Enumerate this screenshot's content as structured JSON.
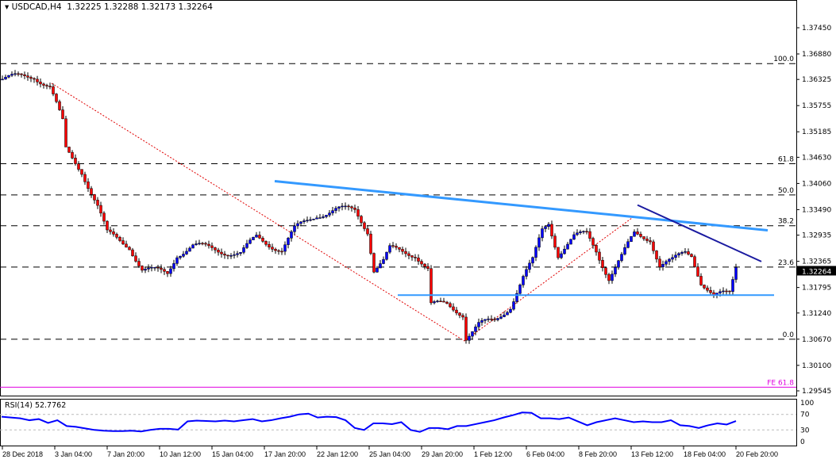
{
  "header": {
    "symbol": "USDCAD,H4",
    "open": "1.32225",
    "high": "1.32288",
    "low": "1.32173",
    "close": "1.32264"
  },
  "chart_data": {
    "type": "candlestick",
    "title": "USDCAD,H4",
    "ylim": [
      1.29545,
      1.3745
    ],
    "price_ticks": [
      "1.37450",
      "1.36880",
      "1.36325",
      "1.35755",
      "1.35185",
      "1.34630",
      "1.34060",
      "1.33490",
      "1.32935",
      "1.32365",
      "1.31795",
      "1.31240",
      "1.30670",
      "1.30100",
      "1.29545"
    ],
    "current_price": "1.32264",
    "x_ticks": [
      "28 Dec 2018",
      "3 Jan 04:00",
      "7 Jan 20:00",
      "10 Jan 12:00",
      "15 Jan 04:00",
      "17 Jan 20:00",
      "22 Jan 12:00",
      "25 Jan 04:00",
      "29 Jan 20:00",
      "1 Feb 12:00",
      "6 Feb 04:00",
      "8 Feb 20:00",
      "13 Feb 12:00",
      "18 Feb 04:00",
      "20 Feb 20:00"
    ],
    "close_path": [
      [
        0,
        1.3633
      ],
      [
        10,
        1.3641
      ],
      [
        15,
        1.3616
      ],
      [
        19,
        1.3538
      ],
      [
        20,
        1.3478
      ],
      [
        25,
        1.3434
      ],
      [
        30,
        1.3357
      ],
      [
        33,
        1.3296
      ],
      [
        40,
        1.327
      ],
      [
        44,
        1.3219
      ],
      [
        52,
        1.321
      ],
      [
        55,
        1.3253
      ],
      [
        60,
        1.327
      ],
      [
        75,
        1.3253
      ],
      [
        80,
        1.3288
      ],
      [
        88,
        1.3262
      ],
      [
        92,
        1.3305
      ],
      [
        99,
        1.3339
      ],
      [
        105,
        1.3348
      ],
      [
        111,
        1.3348
      ],
      [
        115,
        1.3305
      ],
      [
        117,
        1.3219
      ],
      [
        120,
        1.3236
      ],
      [
        122,
        1.3262
      ],
      [
        130,
        1.3253
      ],
      [
        134,
        1.3219
      ],
      [
        135,
        1.3141
      ],
      [
        140,
        1.3141
      ],
      [
        145,
        1.3124
      ],
      [
        146,
        1.3072
      ],
      [
        150,
        1.3098
      ],
      [
        155,
        1.3106
      ],
      [
        160,
        1.3141
      ],
      [
        164,
        1.3201
      ],
      [
        167,
        1.3236
      ],
      [
        170,
        1.3305
      ],
      [
        172,
        1.3322
      ],
      [
        175,
        1.3253
      ],
      [
        180,
        1.3288
      ],
      [
        184,
        1.3296
      ],
      [
        187,
        1.3262
      ],
      [
        191,
        1.3201
      ],
      [
        195,
        1.3245
      ],
      [
        199,
        1.3296
      ],
      [
        204,
        1.3288
      ],
      [
        207,
        1.3227
      ],
      [
        211,
        1.3236
      ],
      [
        215,
        1.3257
      ],
      [
        217,
        1.3253
      ],
      [
        220,
        1.3193
      ],
      [
        224,
        1.3158
      ],
      [
        229,
        1.3167
      ],
      [
        231,
        1.3227
      ]
    ],
    "fibonacci": [
      {
        "label": "100.0",
        "price": 1.3667
      },
      {
        "label": "61.8",
        "price": 1.3449
      },
      {
        "label": "50.0",
        "price": 1.3381
      },
      {
        "label": "38.2",
        "price": 1.3314
      },
      {
        "label": "23.6",
        "price": 1.3224
      },
      {
        "label": "0.0",
        "price": 1.3067
      }
    ],
    "fe_label": "FE 61.8",
    "fe_price": 1.2966,
    "trendlines": {
      "upper": [
        [
          86,
          1.3411
        ],
        [
          241,
          1.3304
        ]
      ],
      "support": [
        [
          124,
          1.3163
        ],
        [
          243,
          1.3163
        ]
      ],
      "short": [
        [
          200,
          1.3359
        ],
        [
          239,
          1.3236
        ]
      ]
    },
    "rsi": {
      "label": "RSI(14) 52.7762",
      "levels": [
        "100",
        "70",
        "30",
        "0"
      ],
      "values": [
        64,
        62,
        60,
        55,
        58,
        48,
        55,
        40,
        38,
        34,
        30,
        28,
        27,
        27,
        28,
        26,
        30,
        33,
        33,
        31,
        52,
        54,
        53,
        52,
        54,
        52,
        55,
        58,
        52,
        55,
        60,
        64,
        70,
        72,
        62,
        64,
        63,
        55,
        35,
        30,
        47,
        47,
        45,
        50,
        30,
        25,
        35,
        35,
        32,
        40,
        40,
        45,
        50,
        55,
        62,
        68,
        75,
        74,
        60,
        60,
        58,
        62,
        52,
        42,
        50,
        55,
        60,
        55,
        50,
        52,
        50,
        50,
        55,
        42,
        40,
        35,
        42,
        47,
        44,
        53
      ]
    }
  }
}
